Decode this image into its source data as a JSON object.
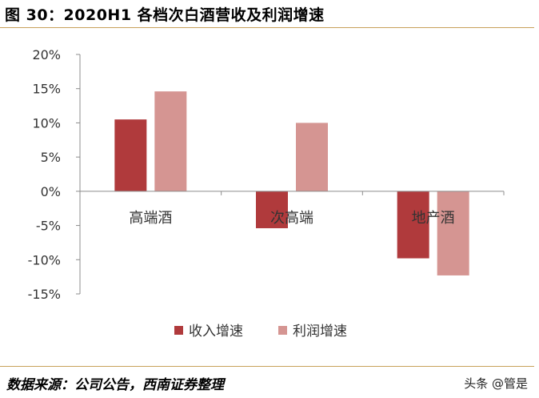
{
  "figure": {
    "title": "图 30：2020H1 各档次白酒营收及利润增速",
    "source": "数据来源：公司公告，西南证券整理",
    "watermark": "头条 @管是"
  },
  "colors": {
    "revenue": "#b03a3c",
    "profit": "#d59592",
    "axis": "#8c8c8c",
    "rule": "#c8a15a"
  },
  "chart_data": {
    "type": "bar",
    "title": "2020H1 各档次白酒营收及利润增速",
    "xlabel": "",
    "ylabel": "",
    "categories": [
      "高端酒",
      "次高端",
      "地产酒"
    ],
    "series": [
      {
        "name": "收入增速",
        "values": [
          10.5,
          -5.4,
          -9.8
        ]
      },
      {
        "name": "利润增速",
        "values": [
          14.6,
          10.0,
          -12.3
        ]
      }
    ],
    "ylim": [
      -15,
      20
    ],
    "yticks": [
      "20%",
      "15%",
      "10%",
      "5%",
      "0%",
      "-5%",
      "-10%",
      "-15%"
    ],
    "grid": false,
    "legend": "bottom-center"
  }
}
